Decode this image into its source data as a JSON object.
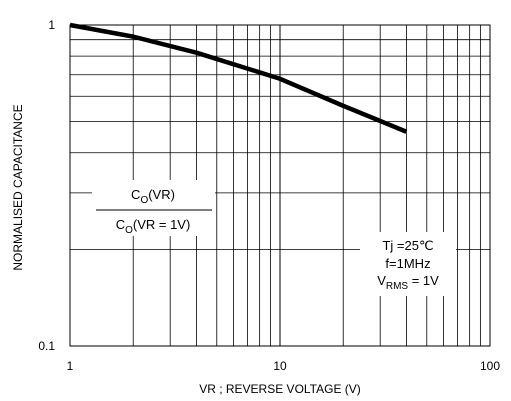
{
  "chart_data": {
    "type": "line",
    "title": "",
    "xlabel": "VR ; REVERSE VOLTAGE (V)",
    "ylabel": "NORMALISED CAPACITANCE",
    "x_scale": "log",
    "y_scale": "log",
    "xlim": [
      1,
      100
    ],
    "ylim": [
      0.1,
      1
    ],
    "grid": true,
    "x_ticks": [
      "1",
      "10",
      "100"
    ],
    "y_ticks": [
      "0.1",
      "1"
    ],
    "series": [
      {
        "color": "#000000",
        "x": [
          1,
          2,
          4,
          10,
          20,
          40
        ],
        "y": [
          1.0,
          0.92,
          0.82,
          0.68,
          0.56,
          0.465
        ]
      }
    ],
    "annotations": {
      "ratio_num_main": "C",
      "ratio_num_sub": "O",
      "ratio_num_tail": "(VR)",
      "ratio_den_main": "C",
      "ratio_den_sub": "O",
      "ratio_den_tail": "(VR = 1V)",
      "cond_tj": "Tj =25℃",
      "cond_f": "f=1MHz",
      "cond_v_main": "V",
      "cond_v_sub": "RMS",
      "cond_v_tail": " = 1V"
    }
  }
}
